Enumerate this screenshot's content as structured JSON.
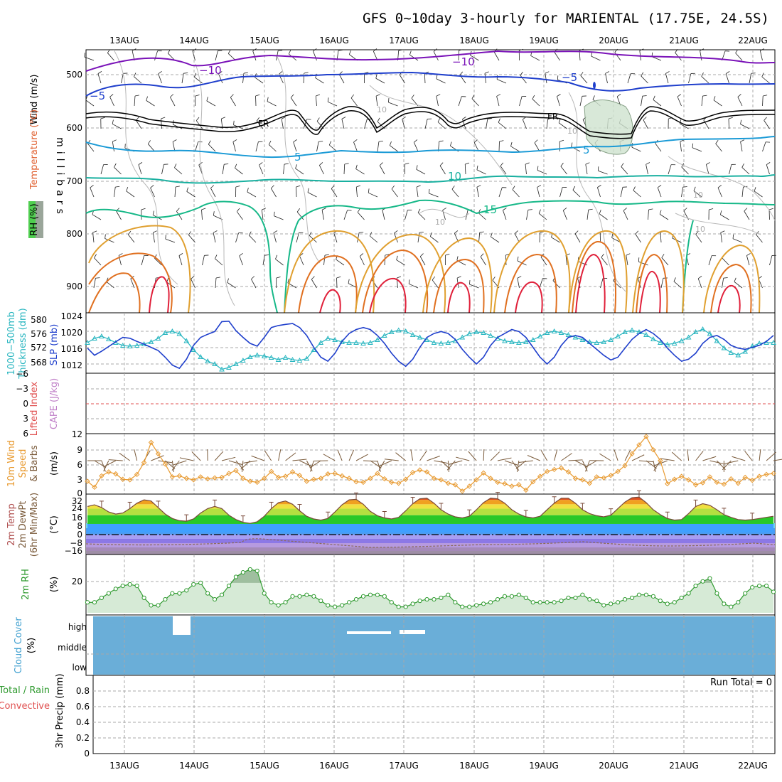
{
  "title": "GFS 0~10day 3-hourly for MARIENTAL (17.75E, 24.5S)",
  "dates": [
    "13AUG",
    "14AUG",
    "15AUG",
    "16AUG",
    "17AUG",
    "18AUG",
    "19AUG",
    "20AUG",
    "21AUG",
    "22AUG"
  ],
  "run_total_label": "Run Total = 0",
  "colors": {
    "temp_neg10": "#7a12b8",
    "temp_neg5": "#1f3fcc",
    "temp_5": "#1a9ad6",
    "temp_10": "#19b0a0",
    "temp_15": "#16b888",
    "rh_low": "#e0a030",
    "rh_mid": "#e07020",
    "rh_high": "#e0203a",
    "thickness": "#29b6c0",
    "slp": "#1f3fcc",
    "wind_speed": "#e89a30",
    "wind_barb": "#7a5a3a",
    "cloud_fill": "#6aaed8",
    "rh2m_line": "#2f9a2f",
    "rh2m_fill": "#d6ead6",
    "dewpoint_line": "#8a6a5a",
    "lifted_zero": "#e05050"
  },
  "upper_panel": {
    "y_axis_label_wind": "Wind (m/s)",
    "y_axis_label_temp": "Temperature (°C)",
    "y_axis_label_rh": "RH (%)",
    "y_axis_label_mb": "millibars",
    "pressure_ticks": [
      "500",
      "600",
      "700",
      "800",
      "900"
    ],
    "contour_labels": {
      "neg10a": "−10",
      "neg10b": "−10",
      "neg5a": "−5",
      "neg5b": "−5",
      "fr_a": "FR",
      "fr_b": "FR",
      "pos5a": "5",
      "pos5b": "5",
      "pos10": "10",
      "pos15": "15",
      "rh10a": "10",
      "rh10b": "10",
      "rh10c": "10",
      "rh10d": "10",
      "rh10e": "10"
    }
  },
  "thickness_panel": {
    "left_label_line1": "1000−500mb",
    "left_label_line2": "Thickness (dm)",
    "right_label": "SLP (mb)",
    "left_ticks": [
      "580",
      "576",
      "572",
      "568"
    ],
    "right_ticks": [
      "1024",
      "1020",
      "1016",
      "1012"
    ]
  },
  "cape_panel": {
    "label_lifted": "Lifted Index",
    "label_cape": "CAPE (J/kg)",
    "ticks": [
      "−6",
      "−3",
      "0",
      "3",
      "6"
    ]
  },
  "wind_panel": {
    "label_line1": "10m Wind",
    "label_line2": "Speed",
    "label_line3": "& Barbs",
    "units": "(m/s)",
    "ticks": [
      "12",
      "9",
      "6",
      "3",
      "0"
    ]
  },
  "temp_panel": {
    "label_line1": "2m Temp",
    "label_line2": "2m DewPt",
    "label_line3": "(6hr Min/Max)",
    "units": "(°C)",
    "ticks": [
      "32",
      "24",
      "16",
      "8",
      "0",
      "−8",
      "−16"
    ]
  },
  "rh_panel": {
    "label": "2m RH",
    "units": "(%)",
    "ticks": [
      "20"
    ]
  },
  "cloud_panel": {
    "label": "Cloud Cover",
    "units": "(%)",
    "levels": [
      "high",
      "middle",
      "low"
    ]
  },
  "precip_panel": {
    "label_total": "Total / Rain",
    "label_conv": "Convective",
    "label_axis": "3hr Precip (mm)",
    "ticks": [
      "0.8",
      "0.6",
      "0.4",
      "0.2",
      "0"
    ]
  },
  "chart_data": [
    {
      "type": "line",
      "name": "slp",
      "ylabel": "SLP (mb)",
      "ylim": [
        1010,
        1024
      ],
      "x_step_hours": 3,
      "values": [
        1016.8,
        1015.0,
        1016.0,
        1017.2,
        1018.4,
        1019.5,
        1019.3,
        1018.5,
        1017.8,
        1017.0,
        1016.2,
        1014.5,
        1012.5,
        1011.7,
        1014.0,
        1017.5,
        1019.5,
        1020.3,
        1021.0,
        1023.5,
        1023.6,
        1021.2,
        1019.5,
        1018.0,
        1017.3,
        1019.5,
        1022.0,
        1022.5,
        1022.8,
        1023.0,
        1022.0,
        1020.0,
        1017.0,
        1014.5,
        1013.5,
        1015.5,
        1018.5,
        1020.5,
        1021.5,
        1022.0,
        1021.5,
        1020.0,
        1018.0,
        1015.5,
        1013.5,
        1012.2,
        1014.0,
        1017.0,
        1019.5,
        1020.5,
        1021.0,
        1020.5,
        1019.0,
        1016.5,
        1014.5,
        1012.8,
        1014.5,
        1017.5,
        1019.5,
        1020.5,
        1021.5,
        1021.0,
        1019.5,
        1017.0,
        1014.5,
        1012.8,
        1014.5,
        1017.5,
        1019.5,
        1020.0,
        1019.5,
        1018.0,
        1016.5,
        1015.0,
        1013.8,
        1014.5,
        1016.8,
        1019.0,
        1020.5,
        1021.5,
        1020.5,
        1019.0,
        1016.8,
        1015.0,
        1013.5,
        1014.0,
        1015.5,
        1018.0,
        1019.5,
        1020.0,
        1019.0,
        1017.5,
        1016.8,
        1016.5,
        1017.0,
        1017.5,
        1018.5,
        1020.0
      ]
    },
    {
      "type": "line",
      "name": "thickness",
      "ylabel": "1000-500mb Thickness (dm)",
      "ylim": [
        566,
        580
      ],
      "x_step_hours": 3,
      "values": [
        574.0,
        575.2,
        575.8,
        575.0,
        574.0,
        573.2,
        573.0,
        573.2,
        573.6,
        574.2,
        575.2,
        576.8,
        577.2,
        576.5,
        574.5,
        572.0,
        570.0,
        568.8,
        568.0,
        566.5,
        567.0,
        568.0,
        569.0,
        570.0,
        570.5,
        570.2,
        569.8,
        569.2,
        569.8,
        569.2,
        569.0,
        569.5,
        572.0,
        574.0,
        575.2,
        574.8,
        574.2,
        574.0,
        574.0,
        573.8,
        574.0,
        574.8,
        576.0,
        577.0,
        577.5,
        577.2,
        576.2,
        575.5,
        574.8,
        574.0,
        573.8,
        574.0,
        574.5,
        575.5,
        576.5,
        577.0,
        576.8,
        576.0,
        575.2,
        574.5,
        574.2,
        574.0,
        574.2,
        574.8,
        575.8,
        576.8,
        577.2,
        576.8,
        576.2,
        575.5,
        574.8,
        574.2,
        574.0,
        574.2,
        574.8,
        575.8,
        577.0,
        577.5,
        577.0,
        576.2,
        575.0,
        574.0,
        573.5,
        573.8,
        574.5,
        575.5,
        577.0,
        577.8,
        576.5,
        574.5,
        572.5,
        571.2,
        570.5,
        571.5,
        573.0,
        573.8,
        574.0,
        574.0
      ]
    },
    {
      "type": "line",
      "name": "wind_speed",
      "ylabel": "10m Wind Speed (m/s)",
      "ylim": [
        0,
        12
      ],
      "x_step_hours": 3,
      "values": [
        2.6,
        1.4,
        3.7,
        4.5,
        4.1,
        3.0,
        2.9,
        4.0,
        6.4,
        10.5,
        8.2,
        6.1,
        3.5,
        3.7,
        3.2,
        2.9,
        3.5,
        3.1,
        3.3,
        3.4,
        4.2,
        4.8,
        3.2,
        2.6,
        2.4,
        3.2,
        4.6,
        3.4,
        3.6,
        4.5,
        3.8,
        2.6,
        3.0,
        3.2,
        4.1,
        4.2,
        3.7,
        3.2,
        2.5,
        2.4,
        3.2,
        4.2,
        3.1,
        2.4,
        2.2,
        3.0,
        4.4,
        4.9,
        4.5,
        3.2,
        2.9,
        2.2,
        1.9,
        0.6,
        1.6,
        2.9,
        4.3,
        3.2,
        2.4,
        2.1,
        1.6,
        1.9,
        0.8,
        2.5,
        3.6,
        4.6,
        5.0,
        5.3,
        4.5,
        3.2,
        2.9,
        2.2,
        3.5,
        3.3,
        3.8,
        4.6,
        5.8,
        8.2,
        10.0,
        11.7,
        9.0,
        6.8,
        2.1,
        3.0,
        3.6,
        2.9,
        1.9,
        2.3,
        3.5,
        2.4,
        2.0,
        3.1,
        2.2,
        3.4,
        2.8,
        3.6,
        4.0,
        4.2
      ]
    },
    {
      "type": "area",
      "name": "temperature_2m",
      "ylabel": "2m Temp (°C)",
      "ylim": [
        -20,
        34
      ],
      "x_step_hours": 3,
      "values": [
        24.0,
        25.5,
        23.0,
        19.0,
        17.0,
        18.0,
        22.0,
        27.0,
        30.0,
        29.0,
        23.0,
        17.0,
        13.0,
        11.0,
        10.5,
        12.5,
        18.0,
        22.0,
        24.0,
        22.0,
        16.0,
        12.0,
        9.5,
        8.5,
        10.0,
        15.0,
        22.0,
        27.5,
        29.0,
        26.0,
        20.0,
        15.0,
        12.5,
        11.5,
        13.0,
        19.0,
        25.5,
        30.0,
        30.5,
        26.0,
        19.5,
        15.5,
        13.5,
        12.5,
        14.0,
        20.0,
        26.5,
        31.0,
        31.5,
        27.0,
        21.0,
        17.0,
        14.5,
        13.5,
        15.0,
        21.0,
        27.5,
        31.5,
        31.0,
        27.0,
        21.0,
        17.0,
        14.5,
        13.5,
        15.0,
        21.0,
        27.0,
        31.5,
        31.5,
        27.0,
        21.0,
        17.5,
        15.5,
        14.5,
        16.0,
        22.0,
        28.0,
        32.0,
        32.5,
        27.5,
        21.0,
        16.5,
        13.0,
        11.5,
        12.0,
        17.5,
        24.0,
        26.5,
        25.0,
        21.0,
        16.5,
        14.0,
        12.0,
        11.5,
        12.0,
        13.0,
        14.0,
        15.0
      ]
    },
    {
      "type": "area",
      "name": "rh_2m",
      "ylabel": "2m RH (%)",
      "x_step_hours": 3,
      "values": [
        7,
        7,
        10,
        13,
        16,
        18,
        19,
        18,
        10,
        5,
        5,
        9,
        13,
        13,
        15,
        19,
        20,
        13,
        9,
        12,
        18,
        24,
        27,
        29,
        28,
        13,
        7,
        5,
        7,
        11,
        11,
        12,
        11,
        8,
        5,
        4,
        5,
        7,
        9,
        11,
        12,
        12,
        11,
        7,
        4,
        4,
        6,
        8,
        9,
        9,
        10,
        12,
        7,
        4,
        4,
        5,
        6,
        7,
        9,
        11,
        11,
        12,
        10,
        7,
        7,
        7,
        7,
        8,
        10,
        10,
        12,
        9,
        8,
        5,
        6,
        7,
        9,
        10,
        12,
        12,
        11,
        8,
        6,
        7,
        10,
        13,
        18,
        21,
        23,
        13,
        6,
        4,
        7,
        13,
        17,
        18,
        18,
        14
      ]
    },
    {
      "type": "bar",
      "name": "precip_3hr",
      "ylabel": "3hr Precip (mm)",
      "ylim": [
        0,
        1
      ],
      "values": []
    }
  ]
}
